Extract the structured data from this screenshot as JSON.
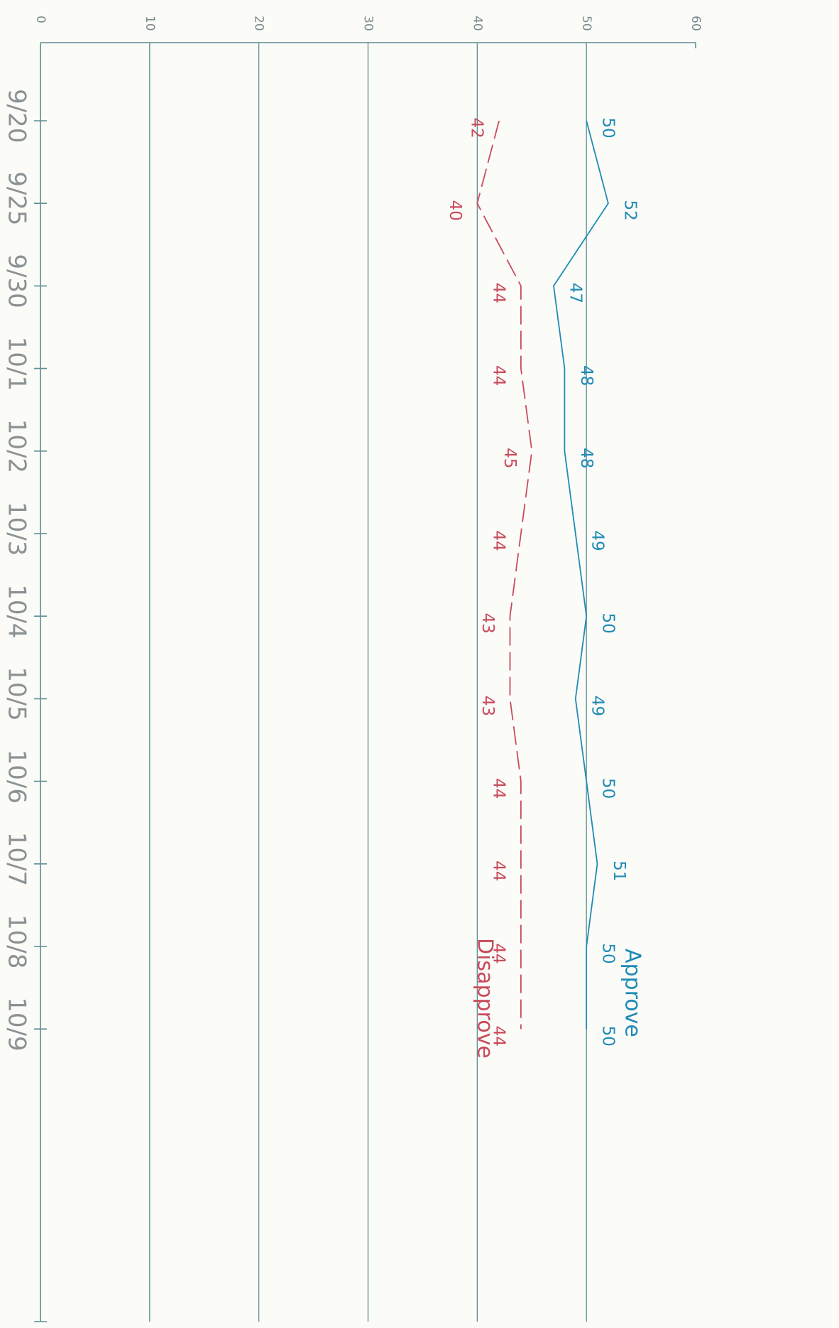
{
  "chart_data": {
    "type": "line",
    "orientation": "rotated 90 degrees clockwise (value axis runs left-to-right across the top, dates run top-to-bottom)",
    "categories": [
      "9/20",
      "9/25",
      "9/30",
      "10/1",
      "10/2",
      "10/3",
      "10/4",
      "10/5",
      "10/6",
      "10/7",
      "10/8",
      "10/9"
    ],
    "y_ticks": [
      "0",
      "10",
      "20",
      "30",
      "40",
      "50",
      "60"
    ],
    "ylim": [
      0,
      60
    ],
    "grid": true,
    "series": [
      {
        "name": "Approve",
        "color": "#1f8bb6",
        "line_style": "solid",
        "values": [
          50,
          52,
          47,
          48,
          48,
          49,
          50,
          49,
          50,
          51,
          50,
          50
        ]
      },
      {
        "name": "Disapprove",
        "color": "#c94b5c",
        "line_style": "dashed",
        "values": [
          42,
          40,
          44,
          44,
          45,
          44,
          43,
          43,
          44,
          44,
          44,
          44
        ]
      }
    ],
    "legend": "series names printed at the end of each line (bottom)"
  }
}
